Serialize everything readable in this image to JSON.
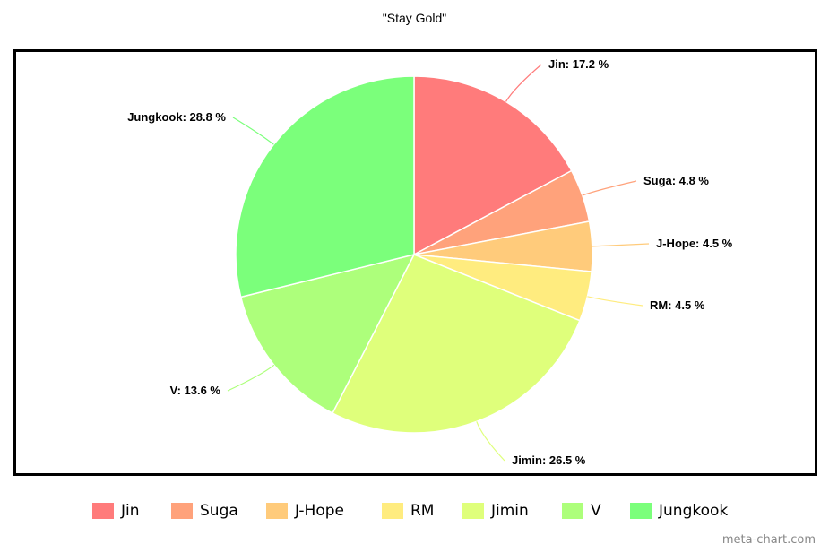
{
  "chart_data": {
    "type": "pie",
    "title": "\"Stay Gold\"",
    "slices": [
      {
        "label": "Jin",
        "value": 17.2,
        "display": "Jin: 17.2 %",
        "color": "#ff7b7b"
      },
      {
        "label": "Suga",
        "value": 4.8,
        "display": "Suga: 4.8 %",
        "color": "#ffa27b"
      },
      {
        "label": "J-Hope",
        "value": 4.5,
        "display": "J-Hope: 4.5 %",
        "color": "#ffcb7b"
      },
      {
        "label": "RM",
        "value": 4.5,
        "display": "RM: 4.5 %",
        "color": "#ffec7f"
      },
      {
        "label": "Jimin",
        "value": 26.5,
        "display": "Jimin: 26.5 %",
        "color": "#dfff7b"
      },
      {
        "label": "V",
        "value": 13.6,
        "display": "V: 13.6 %",
        "color": "#adff7b"
      },
      {
        "label": "Jungkook",
        "value": 28.8,
        "display": "Jungkook: 28.8 %",
        "color": "#7bff7b"
      }
    ],
    "legend_position": "bottom"
  },
  "legend": {
    "items": [
      "Jin",
      "Suga",
      "J-Hope",
      "RM",
      "Jimin",
      "V",
      "Jungkook"
    ]
  },
  "watermark": "meta-chart.com"
}
